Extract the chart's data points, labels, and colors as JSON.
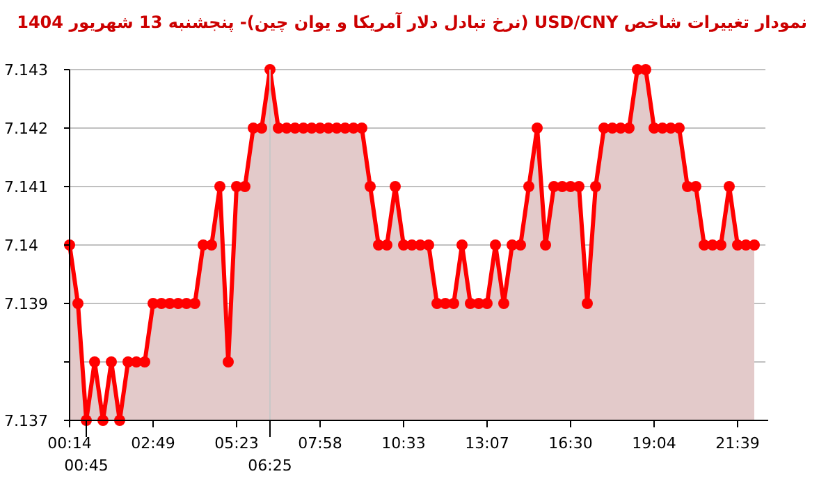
{
  "chart_data": {
    "type": "area",
    "title": "نمودار تغییرات شاخص USD/CNY (نرخ تبادل دلار آمریکا و یوان چین)- پنجشنبه  13 شهریور 1404",
    "categories": [
      "00:14",
      null,
      "00:45",
      null,
      null,
      null,
      null,
      null,
      null,
      null,
      "02:49",
      null,
      null,
      null,
      null,
      null,
      null,
      null,
      null,
      null,
      "05:23",
      null,
      null,
      null,
      "06:25",
      null,
      null,
      null,
      null,
      null,
      "07:58",
      null,
      null,
      null,
      null,
      null,
      null,
      null,
      null,
      null,
      "10:33",
      null,
      null,
      null,
      null,
      null,
      null,
      null,
      null,
      null,
      "13:07",
      null,
      null,
      null,
      null,
      null,
      null,
      null,
      null,
      null,
      "16:30",
      null,
      null,
      null,
      null,
      null,
      null,
      null,
      null,
      null,
      "19:04",
      null,
      null,
      null,
      null,
      null,
      null,
      null,
      null,
      null,
      "21:39",
      null,
      null
    ],
    "series": [
      {
        "color": "#ff0000",
        "values": [
          7.14,
          7.139,
          7.137,
          7.138,
          7.137,
          7.138,
          7.137,
          7.138,
          7.138,
          7.138,
          7.139,
          7.139,
          7.139,
          7.139,
          7.139,
          7.139,
          7.14,
          7.14,
          7.141,
          7.138,
          7.141,
          7.141,
          7.142,
          7.142,
          7.143,
          7.142,
          7.142,
          7.142,
          7.142,
          7.142,
          7.142,
          7.142,
          7.142,
          7.142,
          7.142,
          7.142,
          7.141,
          7.14,
          7.14,
          7.141,
          7.14,
          7.14,
          7.14,
          7.14,
          7.139,
          7.139,
          7.139,
          7.14,
          7.139,
          7.139,
          7.139,
          7.14,
          7.139,
          7.14,
          7.14,
          7.141,
          7.142,
          7.14,
          7.141,
          7.141,
          7.141,
          7.141,
          7.139,
          7.141,
          7.142,
          7.142,
          7.142,
          7.142,
          7.143,
          7.143,
          7.142,
          7.142,
          7.142,
          7.142,
          7.141,
          7.141,
          7.14,
          7.14,
          7.14,
          7.141,
          7.14,
          7.14,
          7.14
        ]
      }
    ],
    "ylim": [
      7.137,
      7.143
    ],
    "yticks": [
      7.137,
      {
        "value": 7.138,
        "label": null
      },
      7.139,
      7.14,
      7.141,
      7.142,
      7.143
    ],
    "ref_lines": [
      {
        "axis": "x",
        "value": "06:25",
        "color": "#c8c8c8"
      }
    ],
    "grid": "y",
    "marker": "circle",
    "line_style": "solid"
  }
}
